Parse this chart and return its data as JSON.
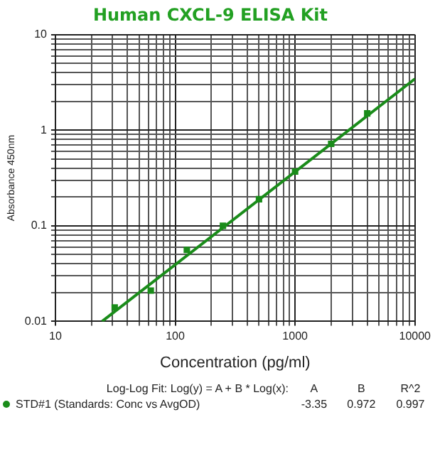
{
  "chart_data": {
    "type": "scatter",
    "title": "Human CXCL-9 ELISA Kit",
    "xlabel": "Concentration (pg/ml)",
    "ylabel": "Absorbance 450nm",
    "log": "xy",
    "grid": true,
    "legend": "bottom",
    "xlim": [
      10,
      10000
    ],
    "ylim": [
      0.01,
      10
    ],
    "xticks": [
      10,
      {
        "value": 20,
        "label": null
      },
      {
        "value": 30,
        "label": null
      },
      {
        "value": 40,
        "label": null
      },
      {
        "value": 50,
        "label": null
      },
      {
        "value": 60,
        "label": null
      },
      {
        "value": 70,
        "label": null
      },
      {
        "value": 80,
        "label": null
      },
      {
        "value": 90,
        "label": null
      },
      100,
      {
        "value": 200,
        "label": null
      },
      {
        "value": 300,
        "label": null
      },
      {
        "value": 400,
        "label": null
      },
      {
        "value": 500,
        "label": null
      },
      {
        "value": 600,
        "label": null
      },
      {
        "value": 700,
        "label": null
      },
      {
        "value": 800,
        "label": null
      },
      {
        "value": 900,
        "label": null
      },
      1000,
      {
        "value": 2000,
        "label": null
      },
      {
        "value": 3000,
        "label": null
      },
      {
        "value": 4000,
        "label": null
      },
      {
        "value": 5000,
        "label": null
      },
      {
        "value": 6000,
        "label": null
      },
      {
        "value": 7000,
        "label": null
      },
      {
        "value": 8000,
        "label": null
      },
      {
        "value": 9000,
        "label": null
      },
      10000
    ],
    "yticks": [
      0.01,
      {
        "value": 0.02,
        "label": null
      },
      {
        "value": 0.03,
        "label": null
      },
      {
        "value": 0.04,
        "label": null
      },
      {
        "value": 0.05,
        "label": null
      },
      {
        "value": 0.06,
        "label": null
      },
      {
        "value": 0.07,
        "label": null
      },
      {
        "value": 0.08,
        "label": null
      },
      {
        "value": 0.09,
        "label": null
      },
      0.1,
      {
        "value": 0.2,
        "label": null
      },
      {
        "value": 0.3,
        "label": null
      },
      {
        "value": 0.4,
        "label": null
      },
      {
        "value": 0.5,
        "label": null
      },
      {
        "value": 0.6,
        "label": null
      },
      {
        "value": 0.7,
        "label": null
      },
      {
        "value": 0.8,
        "label": null
      },
      {
        "value": 0.9,
        "label": null
      },
      1,
      {
        "value": 2,
        "label": null
      },
      {
        "value": 3,
        "label": null
      },
      {
        "value": 4,
        "label": null
      },
      {
        "value": 5,
        "label": null
      },
      {
        "value": 6,
        "label": null
      },
      {
        "value": 7,
        "label": null
      },
      {
        "value": 8,
        "label": null
      },
      {
        "value": 9,
        "label": null
      },
      10
    ],
    "series": [
      {
        "name": "STD#1 (Standards: Conc vs AvgOD)",
        "color": "#1a8c1a",
        "marker": "square",
        "x": [
          31.25,
          62.5,
          125,
          250,
          500,
          1000,
          2000,
          4000
        ],
        "values": [
          0.014,
          0.021,
          0.056,
          0.1,
          0.19,
          0.37,
          0.72,
          1.5
        ]
      },
      {
        "type": "line",
        "color": "#1a8c1a",
        "marker": "none",
        "x": [
          24.5,
          10000
        ],
        "values": [
          0.01,
          3.45
        ]
      }
    ],
    "annotations": [
      "Log-Log Fit: Log(y) = A + B * Log(x):",
      "A",
      "B",
      "R^2",
      "-3.35",
      "0.972",
      "0.997"
    ]
  }
}
